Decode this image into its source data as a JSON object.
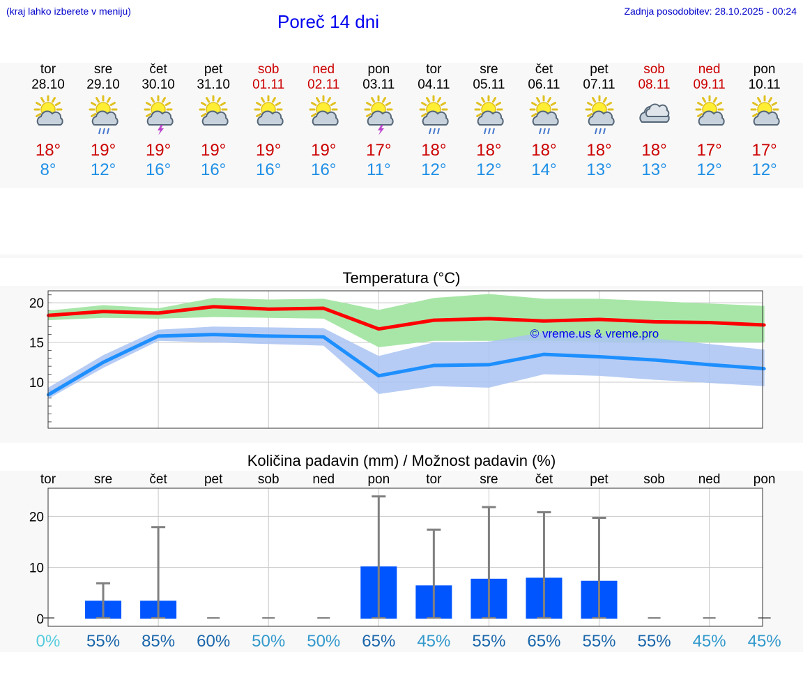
{
  "header": {
    "hint": "(kraj lahko izberete v meniju)",
    "title": "Poreč 14 dni",
    "updated": "Zadnja posodobitev: 28.10.2025 - 00:24"
  },
  "colors": {
    "max_line": "#ff0000",
    "max_band": "#a8e6a8",
    "min_line": "#1e8fff",
    "min_band": "#a9c3f2",
    "bar": "#0055ff",
    "whisker": "#808080"
  },
  "days": [
    {
      "name": "tor",
      "date": "28.10",
      "weekend": false,
      "icon": "sun-cloud",
      "tmax": "18°",
      "tmin": "8°"
    },
    {
      "name": "sre",
      "date": "29.10",
      "weekend": false,
      "icon": "sun-cloud-rain",
      "tmax": "19°",
      "tmin": "12°"
    },
    {
      "name": "čet",
      "date": "30.10",
      "weekend": false,
      "icon": "sun-thunder",
      "tmax": "19°",
      "tmin": "16°"
    },
    {
      "name": "pet",
      "date": "31.10",
      "weekend": false,
      "icon": "sun-cloud",
      "tmax": "19°",
      "tmin": "16°"
    },
    {
      "name": "sob",
      "date": "01.11",
      "weekend": true,
      "icon": "sun-cloud",
      "tmax": "19°",
      "tmin": "16°"
    },
    {
      "name": "ned",
      "date": "02.11",
      "weekend": true,
      "icon": "sun-cloud",
      "tmax": "19°",
      "tmin": "16°"
    },
    {
      "name": "pon",
      "date": "03.11",
      "weekend": false,
      "icon": "sun-thunder",
      "tmax": "17°",
      "tmin": "11°"
    },
    {
      "name": "tor",
      "date": "04.11",
      "weekend": false,
      "icon": "sun-cloud-rain",
      "tmax": "18°",
      "tmin": "12°"
    },
    {
      "name": "sre",
      "date": "05.11",
      "weekend": false,
      "icon": "sun-cloud-rain",
      "tmax": "18°",
      "tmin": "12°"
    },
    {
      "name": "čet",
      "date": "06.11",
      "weekend": false,
      "icon": "sun-cloud-rain",
      "tmax": "18°",
      "tmin": "14°"
    },
    {
      "name": "pet",
      "date": "07.11",
      "weekend": false,
      "icon": "sun-cloud-rain",
      "tmax": "18°",
      "tmin": "13°"
    },
    {
      "name": "sob",
      "date": "08.11",
      "weekend": true,
      "icon": "cloud",
      "tmax": "18°",
      "tmin": "13°"
    },
    {
      "name": "ned",
      "date": "09.11",
      "weekend": true,
      "icon": "sun-cloud",
      "tmax": "17°",
      "tmin": "12°"
    },
    {
      "name": "pon",
      "date": "10.11",
      "weekend": false,
      "icon": "sun-cloud",
      "tmax": "17°",
      "tmin": "12°"
    }
  ],
  "chart_data": [
    {
      "type": "line",
      "title": "Temperatura (°C)",
      "watermark": "© vreme.us & vreme.pro",
      "ylim": [
        4.2,
        21.5
      ],
      "yticks": [
        "10",
        "15",
        "20"
      ],
      "grid": true,
      "x": [
        0,
        1,
        2,
        3,
        4,
        5,
        6,
        7,
        8,
        9,
        10,
        11,
        12,
        13
      ],
      "series": [
        {
          "values": [
            18.4,
            18.9,
            18.7,
            19.5,
            19.2,
            19.3,
            16.7,
            17.8,
            18.0,
            17.7,
            17.9,
            17.6,
            17.5,
            17.2
          ],
          "band_low": [
            17.8,
            18.1,
            18.0,
            18.2,
            18.1,
            18.0,
            14.4,
            15.2,
            15.2,
            15.2,
            15.1,
            15.0,
            15.0,
            15.0
          ],
          "band_high": [
            19.0,
            19.7,
            19.3,
            20.6,
            20.4,
            20.5,
            19.1,
            20.6,
            21.1,
            20.5,
            20.5,
            20.2,
            19.9,
            19.6
          ]
        },
        {
          "values": [
            8.4,
            12.5,
            15.8,
            16.0,
            15.8,
            15.7,
            10.8,
            12.1,
            12.2,
            13.5,
            13.2,
            12.8,
            12.2,
            11.7
          ],
          "band_low": [
            7.9,
            11.8,
            15.2,
            15.0,
            14.8,
            14.6,
            8.5,
            9.5,
            9.3,
            11.0,
            10.8,
            10.3,
            9.9,
            9.5
          ],
          "band_high": [
            9.3,
            13.4,
            16.6,
            17.0,
            16.9,
            16.8,
            13.3,
            15.0,
            15.1,
            16.3,
            15.9,
            15.5,
            14.8,
            14.1
          ]
        }
      ]
    },
    {
      "type": "bar",
      "title": "Količina padavin (mm) / Možnost padavin (%)",
      "categories": [
        "tor",
        "sre",
        "čet",
        "pet",
        "sob",
        "ned",
        "pon",
        "tor",
        "sre",
        "čet",
        "pet",
        "sob",
        "ned",
        "pon"
      ],
      "values": [
        0,
        3.5,
        3.5,
        0,
        0,
        0,
        10.2,
        6.5,
        7.8,
        8.0,
        7.4,
        0,
        0,
        0
      ],
      "whisker_high": [
        0,
        6.9,
        17.9,
        0,
        0,
        0,
        23.9,
        17.4,
        21.8,
        20.8,
        19.7,
        0,
        0,
        0
      ],
      "probabilities": [
        "0%",
        "55%",
        "85%",
        "60%",
        "50%",
        "50%",
        "65%",
        "45%",
        "55%",
        "65%",
        "55%",
        "55%",
        "45%",
        "45%"
      ],
      "probability_colors": [
        "#55ccdd",
        "#1a66aa",
        "#1a66aa",
        "#1a66aa",
        "#3399cc",
        "#3399cc",
        "#1a66aa",
        "#3399cc",
        "#1a66aa",
        "#1a66aa",
        "#1a66aa",
        "#1a66aa",
        "#3399cc",
        "#3399cc"
      ],
      "ylim": [
        -1.5,
        25.5
      ],
      "yticks": [
        "0",
        "10",
        "20"
      ],
      "grid": true
    }
  ]
}
